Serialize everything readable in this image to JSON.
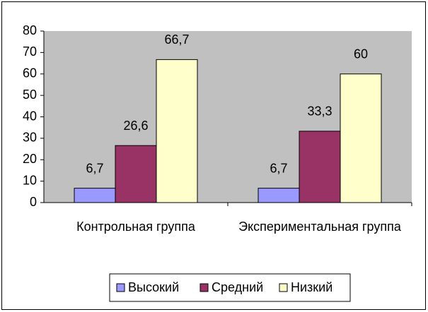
{
  "chart_data": {
    "type": "bar",
    "categories": [
      "Контрольная группа",
      "Экспериментальная группа"
    ],
    "series": [
      {
        "name": "Высокий",
        "color": "#9999ff",
        "values": [
          6.7,
          6.7
        ],
        "value_labels": [
          "6,7",
          "6,7"
        ]
      },
      {
        "name": "Средний",
        "color": "#993366",
        "values": [
          26.6,
          33.3
        ],
        "value_labels": [
          "26,6",
          "33,3"
        ]
      },
      {
        "name": "Низкий",
        "color": "#ffffcc",
        "values": [
          66.7,
          60
        ],
        "value_labels": [
          "66,7",
          "60"
        ]
      }
    ],
    "ylim": [
      0,
      80
    ],
    "yticks": [
      0,
      10,
      20,
      30,
      40,
      50,
      60,
      70,
      80
    ],
    "plot_background": "#c0c0c0",
    "legend": "bottom"
  }
}
